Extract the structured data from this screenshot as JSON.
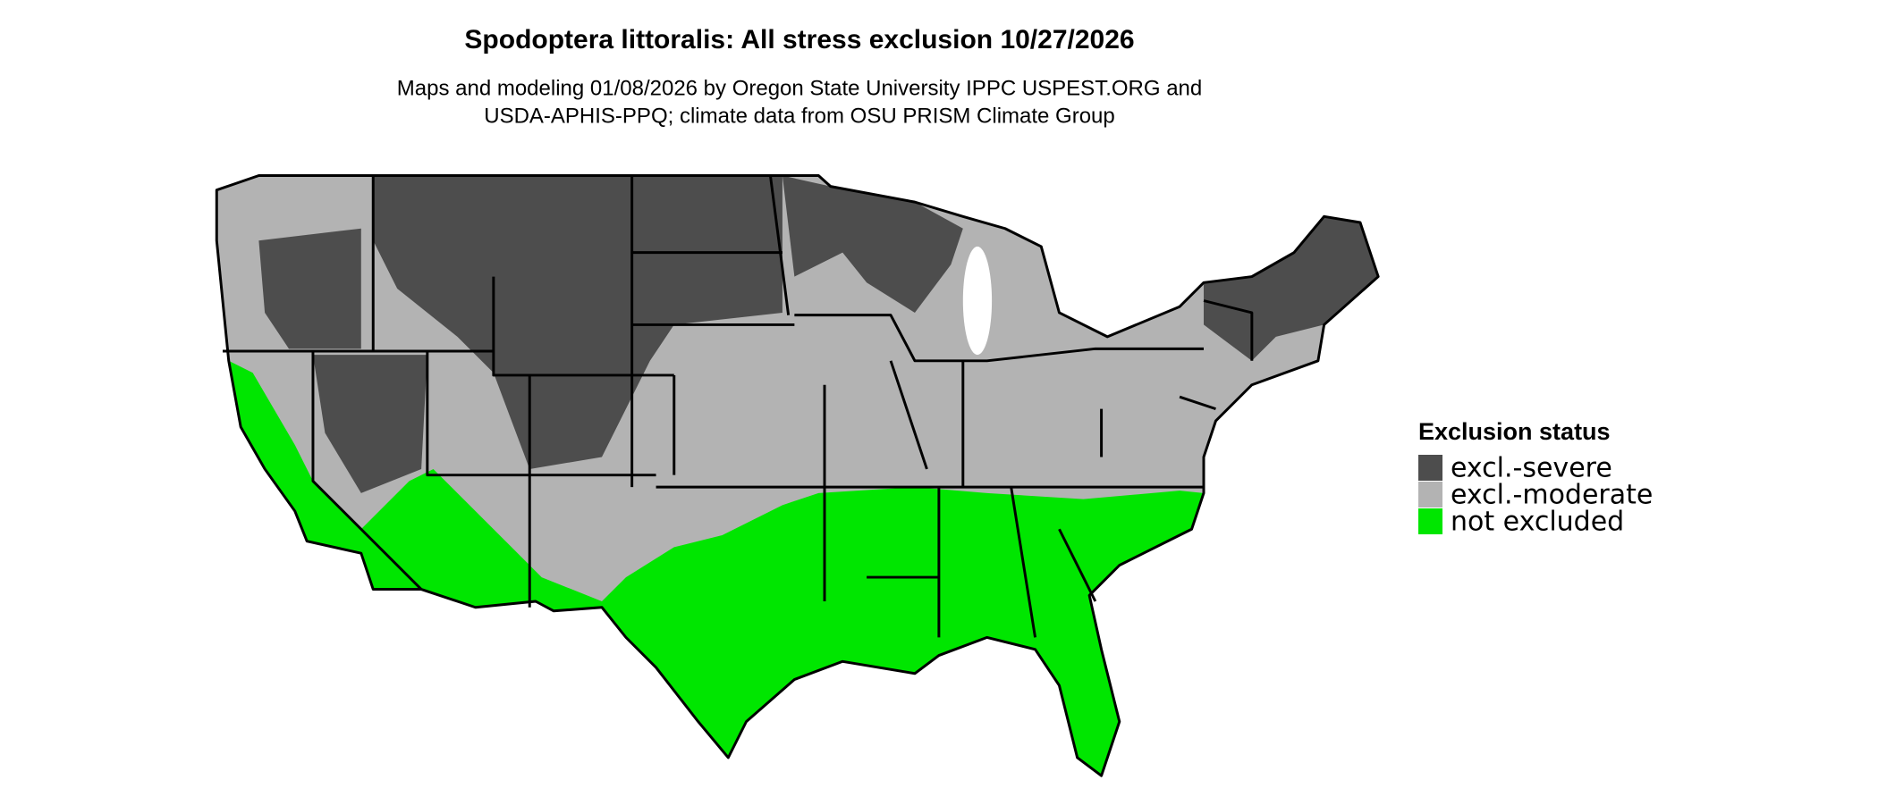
{
  "header": {
    "title": "Spodoptera littoralis: All stress exclusion 10/27/2026",
    "subtitle": [
      "Maps and modeling 01/08/2026 by Oregon State University IPPC USPEST.ORG and",
      "USDA-APHIS-PPQ; climate data from OSU PRISM Climate Group"
    ]
  },
  "legend": {
    "title": "Exclusion status",
    "items": [
      {
        "label": "excl.-severe",
        "color": "#4d4d4d"
      },
      {
        "label": "excl.-moderate",
        "color": "#b3b3b3"
      },
      {
        "label": "not excluded",
        "color": "#00e600"
      }
    ]
  }
}
